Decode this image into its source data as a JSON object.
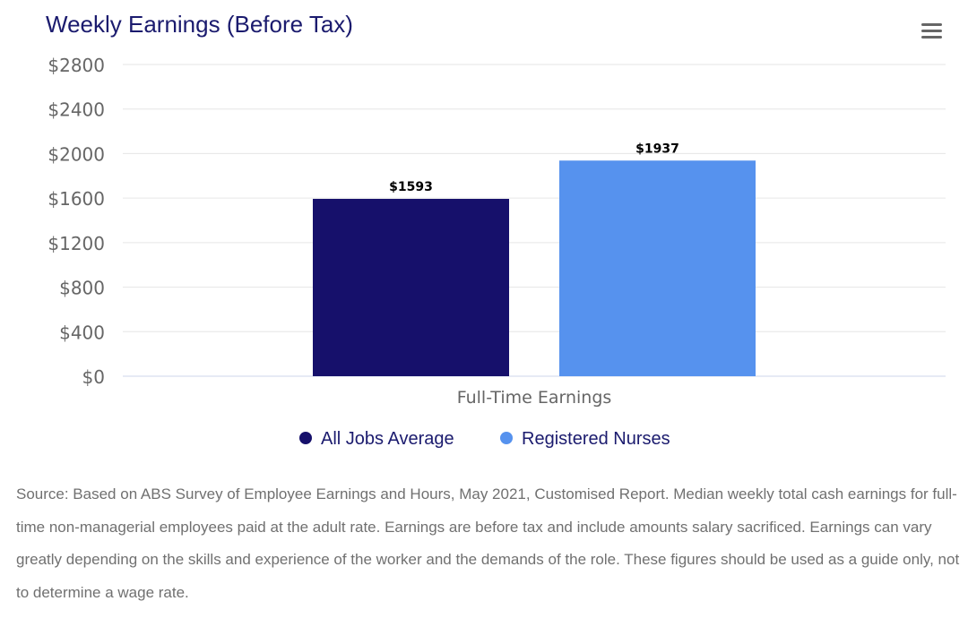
{
  "chart_data": {
    "type": "bar",
    "title": "Weekly Earnings (Before Tax)",
    "categories": [
      "Full-Time Earnings"
    ],
    "series": [
      {
        "name": "All Jobs Average",
        "values": [
          1593
        ],
        "color": "#16106b",
        "label": "$1593"
      },
      {
        "name": "Registered Nurses",
        "values": [
          1937
        ],
        "color": "#5692ee",
        "label": "$1937"
      }
    ],
    "ylim": [
      0,
      2800
    ],
    "yticks": [
      0,
      400,
      800,
      1200,
      1600,
      2000,
      2400,
      2800
    ],
    "ytick_labels": [
      "$0",
      "$400",
      "$800",
      "$1200",
      "$1600",
      "$2000",
      "$2400",
      "$2800"
    ],
    "xlabel": "",
    "ylabel": "",
    "grid": true,
    "legend": "bottom-center"
  },
  "menu_icon": "hamburger-menu-icon",
  "source_note": "Source: Based on ABS Survey of Employee Earnings and Hours, May 2021, Customised Report. Median weekly total cash earnings for full-time non-managerial employees paid at the adult rate. Earnings are before tax and include amounts salary sacrificed. Earnings can vary greatly depending on the skills and experience of the worker and the demands of the role. These figures should be used as a guide only, not to determine a wage rate."
}
